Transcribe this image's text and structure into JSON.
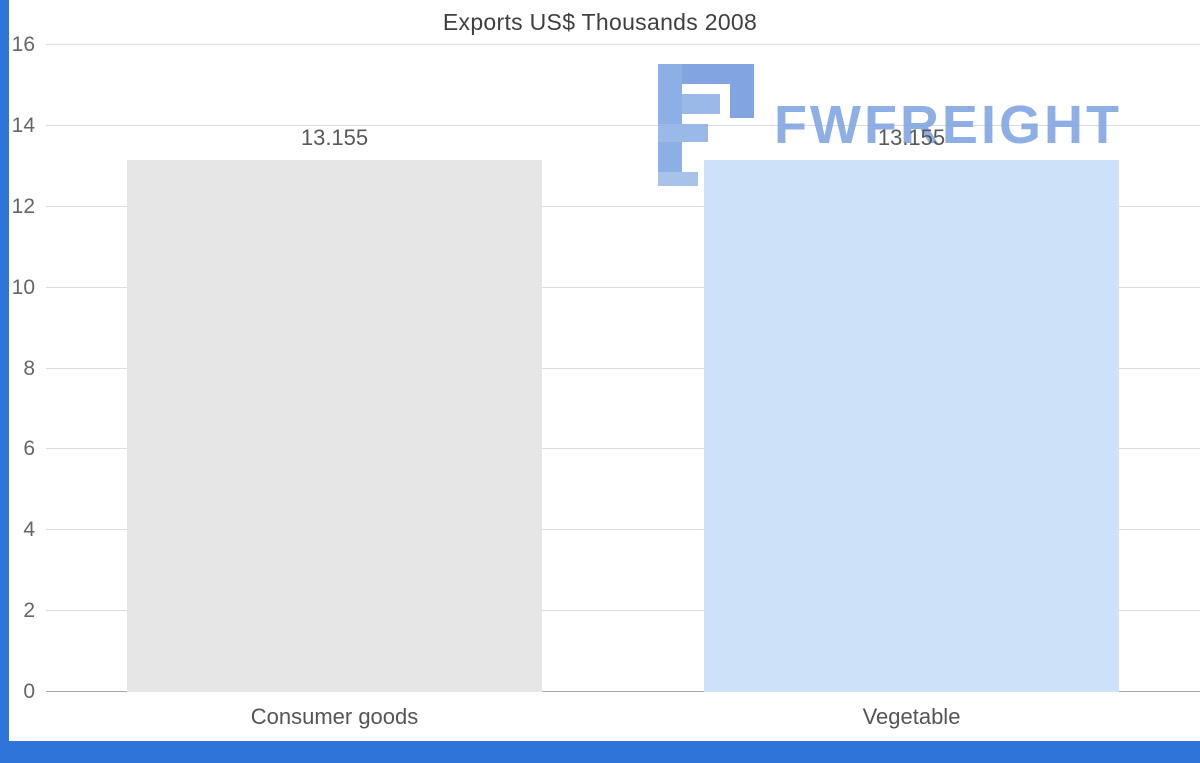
{
  "chart_data": {
    "type": "bar",
    "title": "Exports US$ Thousands 2008",
    "categories": [
      "Consumer goods",
      "Vegetable"
    ],
    "values": [
      13.155,
      13.155
    ],
    "value_labels": [
      "13.155",
      "13.155"
    ],
    "bar_colors": [
      "#e6e6e6",
      "#cde2f8"
    ],
    "xlabel": "",
    "ylabel": "",
    "ylim": [
      0,
      16
    ],
    "yticks": [
      0,
      2,
      4,
      6,
      8,
      10,
      12,
      14,
      16
    ],
    "grid": true,
    "legend_position": "none",
    "background": "#ffffff"
  },
  "watermark": {
    "text": "FWFREIGHT",
    "color": "#7fa5e2"
  },
  "frame": {
    "accent_color": "#2f74d8"
  }
}
